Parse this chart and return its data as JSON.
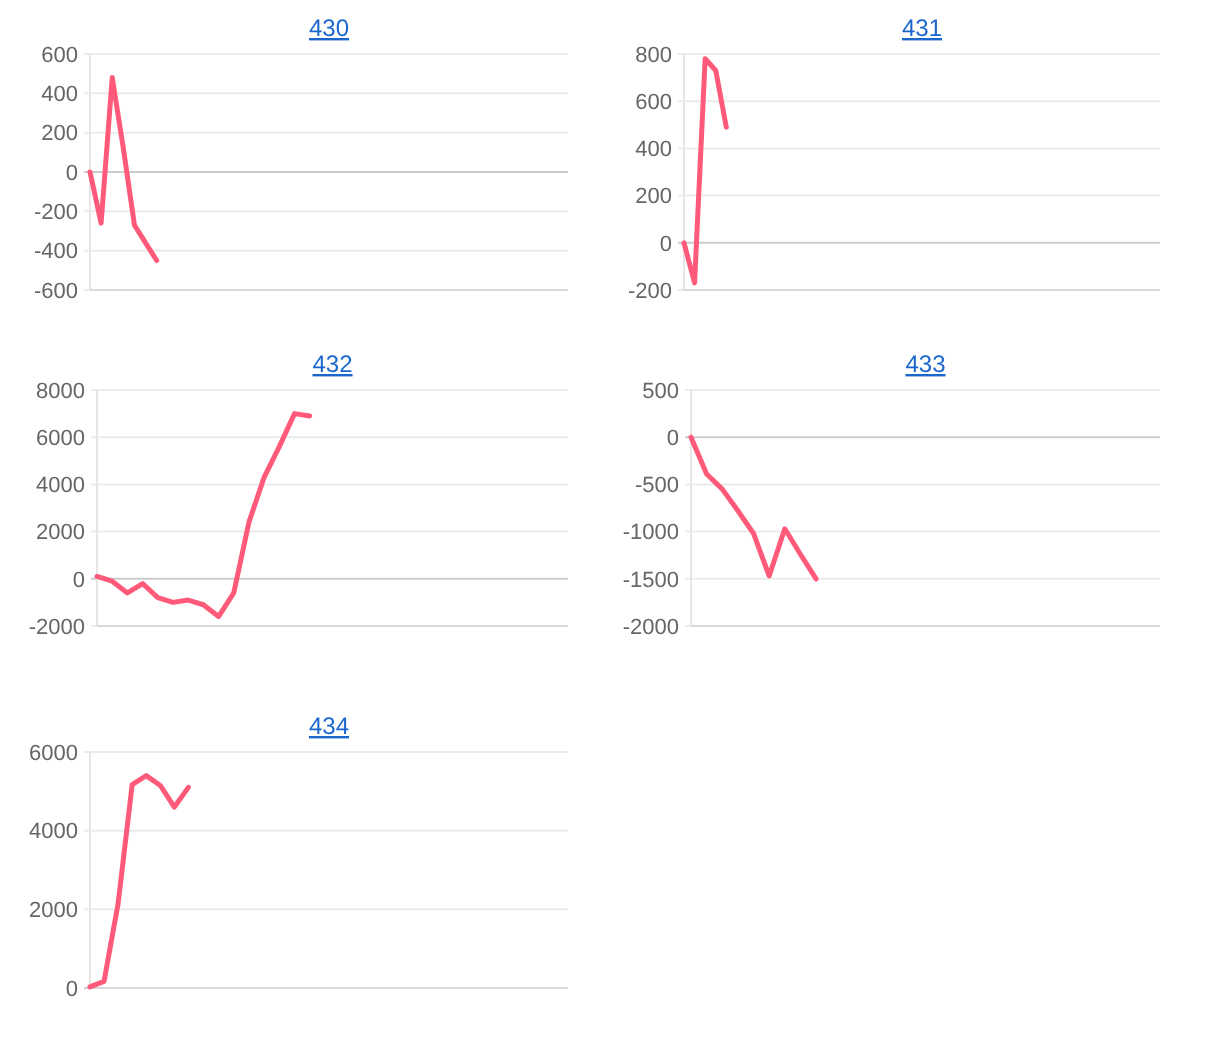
{
  "chart_data": [
    {
      "type": "line",
      "title": "430",
      "categories": [
        null,
        null,
        null,
        null,
        null,
        null,
        null,
        null,
        null,
        null,
        null,
        null,
        null,
        null,
        null,
        null,
        null,
        null,
        null,
        null,
        null,
        null,
        null,
        null,
        null,
        null,
        null,
        null,
        null,
        null,
        null,
        null,
        null,
        null,
        null,
        null,
        null,
        null,
        null,
        null,
        null,
        null,
        null,
        null
      ],
      "series": [
        {
          "color": "#ff5a7a",
          "values": [
            0,
            -260,
            480,
            120,
            -270,
            -360,
            -450,
            null,
            null,
            null,
            null,
            null,
            null,
            null,
            null,
            null,
            null,
            null,
            null,
            null,
            null,
            null,
            null,
            null,
            null,
            null,
            null,
            null,
            null,
            null,
            null,
            null,
            null,
            null,
            null,
            null,
            null,
            null,
            null,
            null,
            null,
            null,
            null,
            null
          ]
        }
      ],
      "ylim": [
        -600,
        600
      ],
      "yticks": [
        -600,
        -400,
        -200,
        0,
        200,
        400,
        600
      ],
      "grid": "y",
      "tick_labels": "y",
      "marker": "none"
    },
    {
      "type": "line",
      "title": "431",
      "categories": [
        null,
        null,
        null,
        null,
        null,
        null,
        null,
        null,
        null,
        null,
        null,
        null,
        null,
        null,
        null,
        null,
        null,
        null,
        null,
        null,
        null,
        null,
        null,
        null,
        null,
        null,
        null,
        null,
        null,
        null,
        null,
        null,
        null,
        null,
        null,
        null,
        null,
        null,
        null,
        null,
        null,
        null,
        null,
        null,
        null,
        null
      ],
      "series": [
        {
          "color": "#ff5a7a",
          "values": [
            0,
            -170,
            780,
            730,
            490,
            null,
            null,
            null,
            null,
            null,
            null,
            null,
            null,
            null,
            null,
            null,
            null,
            null,
            null,
            null,
            null,
            null,
            null,
            null,
            null,
            null,
            null,
            null,
            null,
            null,
            null,
            null,
            null,
            null,
            null,
            null,
            null,
            null,
            null,
            null,
            null,
            null,
            null,
            null,
            null,
            null
          ]
        }
      ],
      "ylim": [
        -200,
        800
      ],
      "yticks": [
        -200,
        0,
        200,
        400,
        600,
        800
      ],
      "grid": "y",
      "tick_labels": "y",
      "marker": "none"
    },
    {
      "type": "line",
      "title": "432",
      "categories": [
        null,
        null,
        null,
        null,
        null,
        null,
        null,
        null,
        null,
        null,
        null,
        null,
        null,
        null,
        null,
        null,
        null,
        null,
        null,
        null,
        null,
        null,
        null,
        null,
        null,
        null,
        null,
        null,
        null,
        null,
        null,
        null
      ],
      "series": [
        {
          "color": "#ff5a7a",
          "values": [
            100,
            -100,
            -600,
            -200,
            -800,
            -1000,
            -900,
            -1100,
            -1600,
            -600,
            2400,
            4300,
            5600,
            7000,
            6900,
            null,
            null,
            null,
            null,
            null,
            null,
            null,
            null,
            null,
            null,
            null,
            null,
            null,
            null,
            null,
            null,
            null
          ]
        }
      ],
      "ylim": [
        -2000,
        8000
      ],
      "yticks": [
        -2000,
        0,
        2000,
        4000,
        6000,
        8000
      ],
      "grid": "y",
      "tick_labels": "y",
      "marker": "none"
    },
    {
      "type": "line",
      "title": "433",
      "categories": [
        null,
        null,
        null,
        null,
        null,
        null,
        null,
        null,
        null,
        null,
        null,
        null,
        null,
        null,
        null,
        null,
        null,
        null,
        null,
        null,
        null,
        null,
        null,
        null,
        null,
        null,
        null,
        null,
        null,
        null,
        null
      ],
      "series": [
        {
          "color": "#ff5a7a",
          "values": [
            0,
            -390,
            -550,
            -780,
            -1020,
            -1470,
            -970,
            -1240,
            -1500,
            null,
            null,
            null,
            null,
            null,
            null,
            null,
            null,
            null,
            null,
            null,
            null,
            null,
            null,
            null,
            null,
            null,
            null,
            null,
            null,
            null,
            null
          ]
        }
      ],
      "ylim": [
        -2000,
        500
      ],
      "yticks": [
        -2000,
        -1500,
        -1000,
        -500,
        0,
        500
      ],
      "grid": "y",
      "tick_labels": "y",
      "marker": "none"
    },
    {
      "type": "line",
      "title": "434",
      "categories": [
        null,
        null,
        null,
        null,
        null,
        null,
        null,
        null,
        null,
        null,
        null,
        null,
        null,
        null,
        null,
        null,
        null,
        null,
        null,
        null,
        null,
        null,
        null,
        null,
        null,
        null,
        null,
        null,
        null,
        null,
        null,
        null,
        null,
        null,
        null
      ],
      "series": [
        {
          "color": "#ff5a7a",
          "values": [
            30,
            170,
            2150,
            5170,
            5400,
            5150,
            4600,
            5100,
            null,
            null,
            null,
            null,
            null,
            null,
            null,
            null,
            null,
            null,
            null,
            null,
            null,
            null,
            null,
            null,
            null,
            null,
            null,
            null,
            null,
            null,
            null,
            null,
            null,
            null,
            null
          ]
        }
      ],
      "ylim": [
        0,
        6000
      ],
      "yticks": [
        0,
        2000,
        4000,
        6000
      ],
      "grid": "y",
      "tick_labels": "y",
      "marker": "none"
    }
  ]
}
